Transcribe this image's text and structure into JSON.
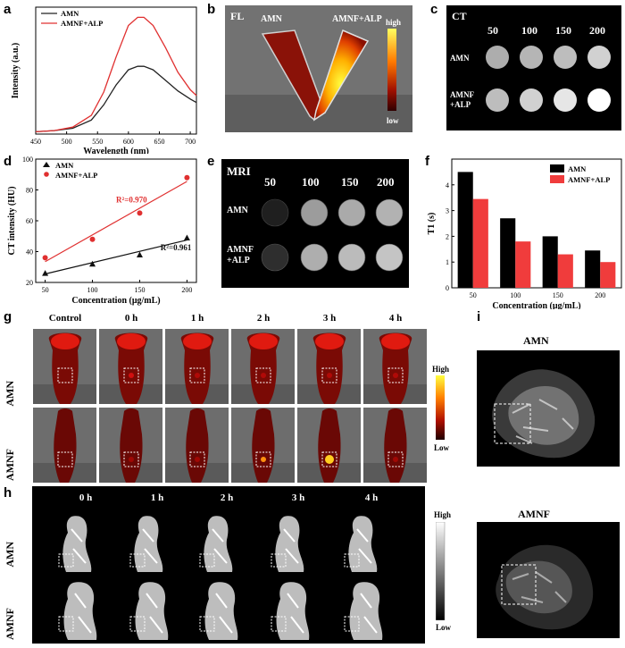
{
  "panel_labels": {
    "a": "a",
    "b": "b",
    "c": "c",
    "d": "d",
    "e": "e",
    "f": "f",
    "g": "g",
    "h": "h",
    "i": "i"
  },
  "panel_b": {
    "tag": "FL",
    "left": "AMN",
    "right": "AMNF+ALP",
    "scale_high": "high",
    "scale_low": "low"
  },
  "panel_c": {
    "tag": "CT",
    "cols": [
      "50",
      "100",
      "150",
      "200"
    ],
    "rows": [
      "AMN",
      "AMNF",
      "+ALP"
    ],
    "intensity_amn": [
      0.5,
      0.55,
      0.6,
      0.72
    ],
    "intensity_amnf": [
      0.6,
      0.72,
      0.85,
      1.0
    ]
  },
  "panel_e": {
    "tag": "MRI",
    "cols": [
      "50",
      "100",
      "150",
      "200"
    ],
    "rows": [
      "AMN",
      "AMNF",
      "+ALP"
    ],
    "intensity_amn": [
      0.05,
      0.62,
      0.68,
      0.72
    ],
    "intensity_amnf": [
      0.12,
      0.7,
      0.76,
      0.8
    ]
  },
  "panel_g": {
    "cols": [
      "Control",
      "0 h",
      "1 h",
      "2 h",
      "3 h",
      "4 h"
    ],
    "rows": [
      "AMN",
      "AMNF"
    ],
    "scale_high": "High",
    "scale_low": "Low"
  },
  "panel_h": {
    "cols": [
      "0 h",
      "1 h",
      "2 h",
      "3 h",
      "4 h"
    ],
    "rows": [
      "AMN",
      "AMNF"
    ],
    "scale_high": "High",
    "scale_low": "Low"
  },
  "panel_i": {
    "top": "AMN",
    "bottom": "AMNF"
  },
  "chart_data": [
    {
      "id": "a",
      "type": "line",
      "xlabel": "Wavelength (nm)",
      "ylabel": "Intensity (a.u.)",
      "xlim": [
        450,
        710
      ],
      "xticks": [
        450,
        500,
        550,
        600,
        650,
        700
      ],
      "series": [
        {
          "name": "AMN",
          "color": "#222222",
          "x": [
            450,
            480,
            510,
            540,
            560,
            580,
            600,
            615,
            625,
            640,
            660,
            680,
            700,
            710
          ],
          "y": [
            0.02,
            0.03,
            0.05,
            0.12,
            0.25,
            0.42,
            0.55,
            0.58,
            0.58,
            0.55,
            0.46,
            0.37,
            0.3,
            0.27
          ]
        },
        {
          "name": "AMNF+ALP",
          "color": "#e03030",
          "x": [
            450,
            480,
            510,
            540,
            560,
            580,
            600,
            615,
            625,
            640,
            660,
            680,
            700,
            710
          ],
          "y": [
            0.02,
            0.03,
            0.06,
            0.16,
            0.36,
            0.66,
            0.93,
            1.0,
            1.0,
            0.93,
            0.74,
            0.53,
            0.38,
            0.33
          ]
        }
      ]
    },
    {
      "id": "d",
      "type": "scatter",
      "xlabel": "Concentration (μg/mL)",
      "ylabel": "CT intensity (HU)",
      "xlim": [
        40,
        210
      ],
      "ylim": [
        20,
        100
      ],
      "xticks": [
        50,
        100,
        150,
        200
      ],
      "yticks": [
        20,
        40,
        60,
        80,
        100
      ],
      "series": [
        {
          "name": "AMN",
          "color": "#111111",
          "marker": "triangle",
          "x": [
            50,
            100,
            150,
            200
          ],
          "y": [
            26,
            32,
            38,
            49
          ],
          "fit": [
            [
              50,
              25.5
            ],
            [
              200,
              47.5
            ]
          ],
          "r2": "R²=0.961"
        },
        {
          "name": "AMNF+ALP",
          "color": "#e03030",
          "marker": "circle",
          "x": [
            50,
            100,
            150,
            200
          ],
          "y": [
            36,
            48,
            65,
            88
          ],
          "fit": [
            [
              50,
              33.5
            ],
            [
              200,
              85.5
            ]
          ],
          "r2": "R²=0.970"
        }
      ]
    },
    {
      "id": "f",
      "type": "bar",
      "xlabel": "Concentration (μg/mL)",
      "ylabel": "T1 (s)",
      "categories": [
        "50",
        "100",
        "150",
        "200"
      ],
      "ylim": [
        0,
        5
      ],
      "yticks": [
        0,
        1,
        2,
        3,
        4
      ],
      "series": [
        {
          "name": "AMN",
          "color": "#000000",
          "values": [
            4.5,
            2.7,
            2.0,
            1.45
          ]
        },
        {
          "name": "AMNF+ALP",
          "color": "#f03c3c",
          "values": [
            3.45,
            1.8,
            1.3,
            1.0
          ]
        }
      ]
    }
  ]
}
